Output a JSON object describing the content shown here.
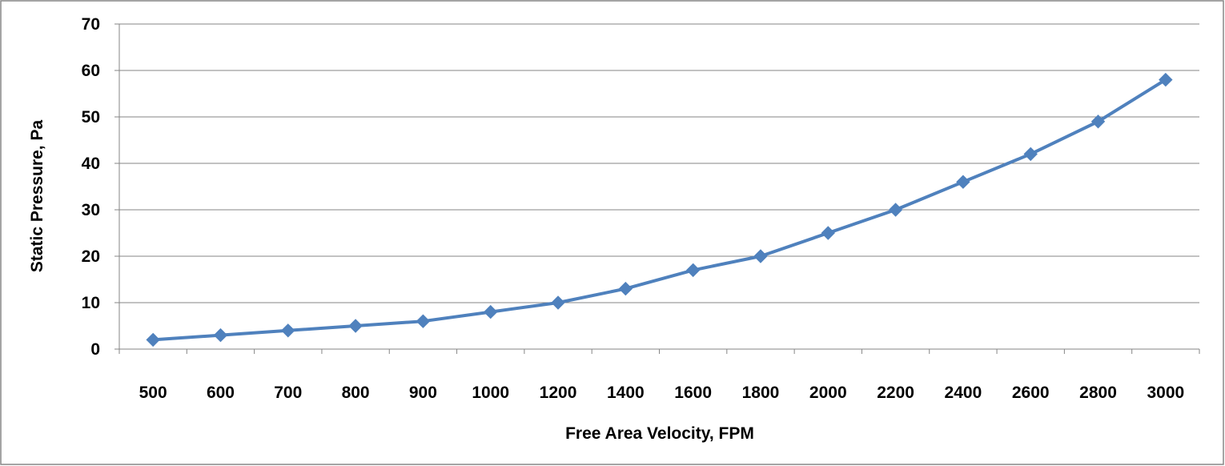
{
  "chart_data": {
    "type": "line",
    "title": "",
    "xlabel": "Free Area Velocity, FPM",
    "ylabel": "Static Pressure, Pa",
    "categories": [
      "500",
      "600",
      "700",
      "800",
      "900",
      "1000",
      "1200",
      "1400",
      "1600",
      "1800",
      "2000",
      "2200",
      "2400",
      "2600",
      "2800",
      "3000"
    ],
    "series": [
      {
        "values": [
          2,
          3,
          4,
          5,
          6,
          8,
          10,
          13,
          17,
          20,
          25,
          30,
          36,
          42,
          49,
          58
        ]
      }
    ],
    "ylim": [
      0,
      70
    ],
    "yticks": [
      "0",
      "10",
      "20",
      "30",
      "40",
      "50",
      "60",
      "70"
    ],
    "grid": true,
    "legend": "none",
    "colors": {
      "series": "#4F81BD",
      "grid": "#868686",
      "border": "#868686"
    },
    "marker": "diamond"
  }
}
